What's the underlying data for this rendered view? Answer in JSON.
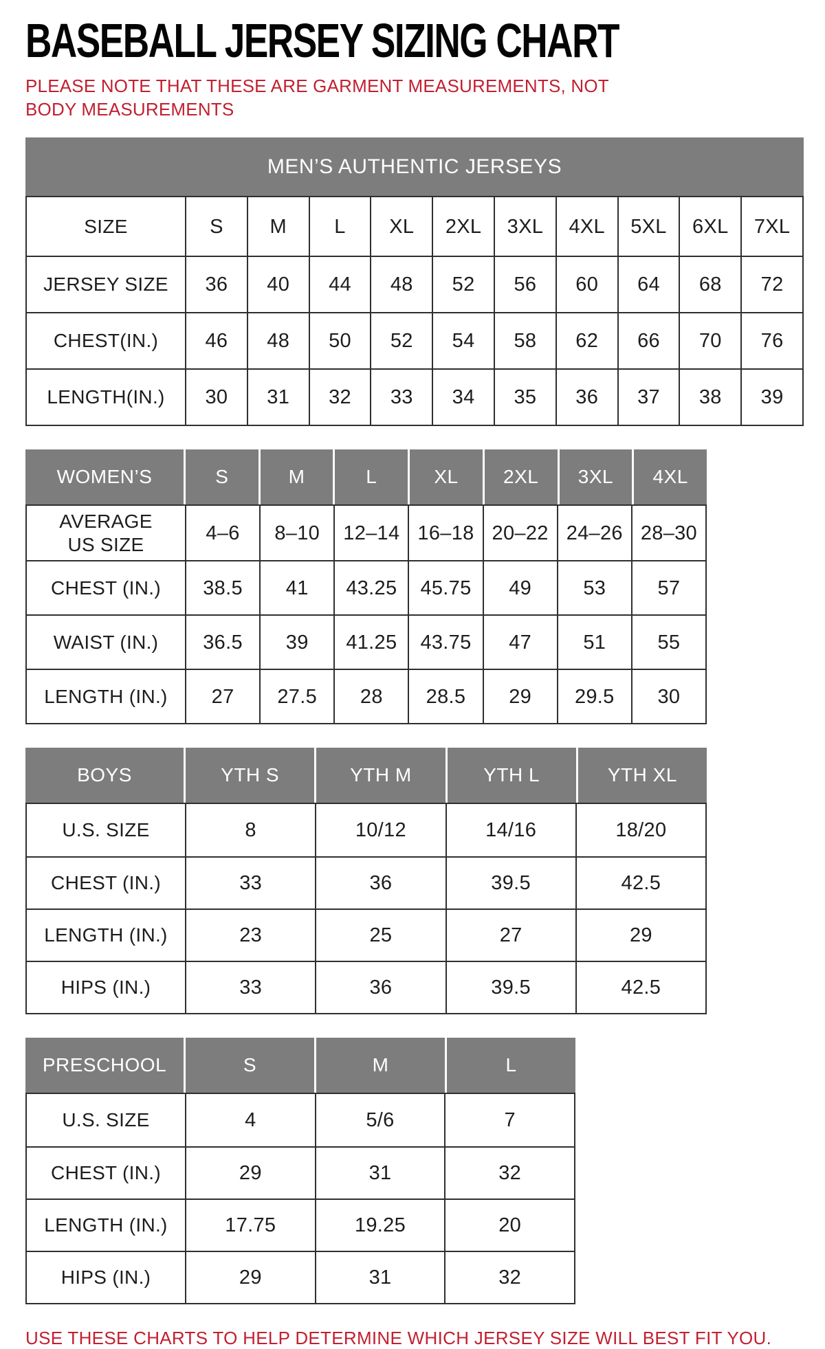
{
  "title": "BASEBALL JERSEY SIZING CHART",
  "note": "PLEASE NOTE THAT THESE ARE GARMENT MEASUREMENTS, NOT BODY MEASUREMENTS",
  "footer": "USE THESE CHARTS TO HELP DETERMINE WHICH JERSEY SIZE WILL BEST FIT YOU.",
  "colors": {
    "accent_red": "#c22030",
    "header_gray": "#7d7d7d",
    "text_dark": "#1d1d1d",
    "border_dark": "#2f2f2f"
  },
  "tables": [
    {
      "id": "mens",
      "banner": "MEN’S AUTHENTIC JERSEYS",
      "rows": [
        {
          "label": "SIZE",
          "values": [
            "S",
            "M",
            "L",
            "XL",
            "2XL",
            "3XL",
            "4XL",
            "5XL",
            "6XL",
            "7XL"
          ]
        },
        {
          "label": "JERSEY SIZE",
          "values": [
            "36",
            "40",
            "44",
            "48",
            "52",
            "56",
            "60",
            "64",
            "68",
            "72"
          ]
        },
        {
          "label": "CHEST(IN.)",
          "values": [
            "46",
            "48",
            "50",
            "52",
            "54",
            "58",
            "62",
            "66",
            "70",
            "76"
          ]
        },
        {
          "label": "LENGTH(IN.)",
          "values": [
            "30",
            "31",
            "32",
            "33",
            "34",
            "35",
            "36",
            "37",
            "38",
            "39"
          ]
        }
      ]
    },
    {
      "id": "womens",
      "header": {
        "label": "WOMEN’S",
        "sizes": [
          "S",
          "M",
          "L",
          "XL",
          "2XL",
          "3XL",
          "4XL"
        ]
      },
      "rows": [
        {
          "label": "AVERAGE\nUS SIZE",
          "values": [
            "4–6",
            "8–10",
            "12–14",
            "16–18",
            "20–22",
            "24–26",
            "28–30"
          ]
        },
        {
          "label": "CHEST (IN.)",
          "values": [
            "38.5",
            "41",
            "43.25",
            "45.75",
            "49",
            "53",
            "57"
          ]
        },
        {
          "label": "WAIST (IN.)",
          "values": [
            "36.5",
            "39",
            "41.25",
            "43.75",
            "47",
            "51",
            "55"
          ]
        },
        {
          "label": "LENGTH (IN.)",
          "values": [
            "27",
            "27.5",
            "28",
            "28.5",
            "29",
            "29.5",
            "30"
          ]
        }
      ]
    },
    {
      "id": "boys",
      "header": {
        "label": "BOYS",
        "sizes": [
          "YTH S",
          "YTH M",
          "YTH L",
          "YTH XL"
        ]
      },
      "rows": [
        {
          "label": "U.S. SIZE",
          "values": [
            "8",
            "10/12",
            "14/16",
            "18/20"
          ]
        },
        {
          "label": "CHEST (IN.)",
          "values": [
            "33",
            "36",
            "39.5",
            "42.5"
          ]
        },
        {
          "label": "LENGTH (IN.)",
          "values": [
            "23",
            "25",
            "27",
            "29"
          ]
        },
        {
          "label": "HIPS (IN.)",
          "values": [
            "33",
            "36",
            "39.5",
            "42.5"
          ]
        }
      ]
    },
    {
      "id": "preschool",
      "header": {
        "label": "PRESCHOOL",
        "sizes": [
          "S",
          "M",
          "L"
        ]
      },
      "rows": [
        {
          "label": "U.S. SIZE",
          "values": [
            "4",
            "5/6",
            "7"
          ]
        },
        {
          "label": "CHEST (IN.)",
          "values": [
            "29",
            "31",
            "32"
          ]
        },
        {
          "label": "LENGTH (IN.)",
          "values": [
            "17.75",
            "19.25",
            "20"
          ]
        },
        {
          "label": "HIPS (IN.)",
          "values": [
            "29",
            "31",
            "32"
          ]
        }
      ]
    }
  ]
}
